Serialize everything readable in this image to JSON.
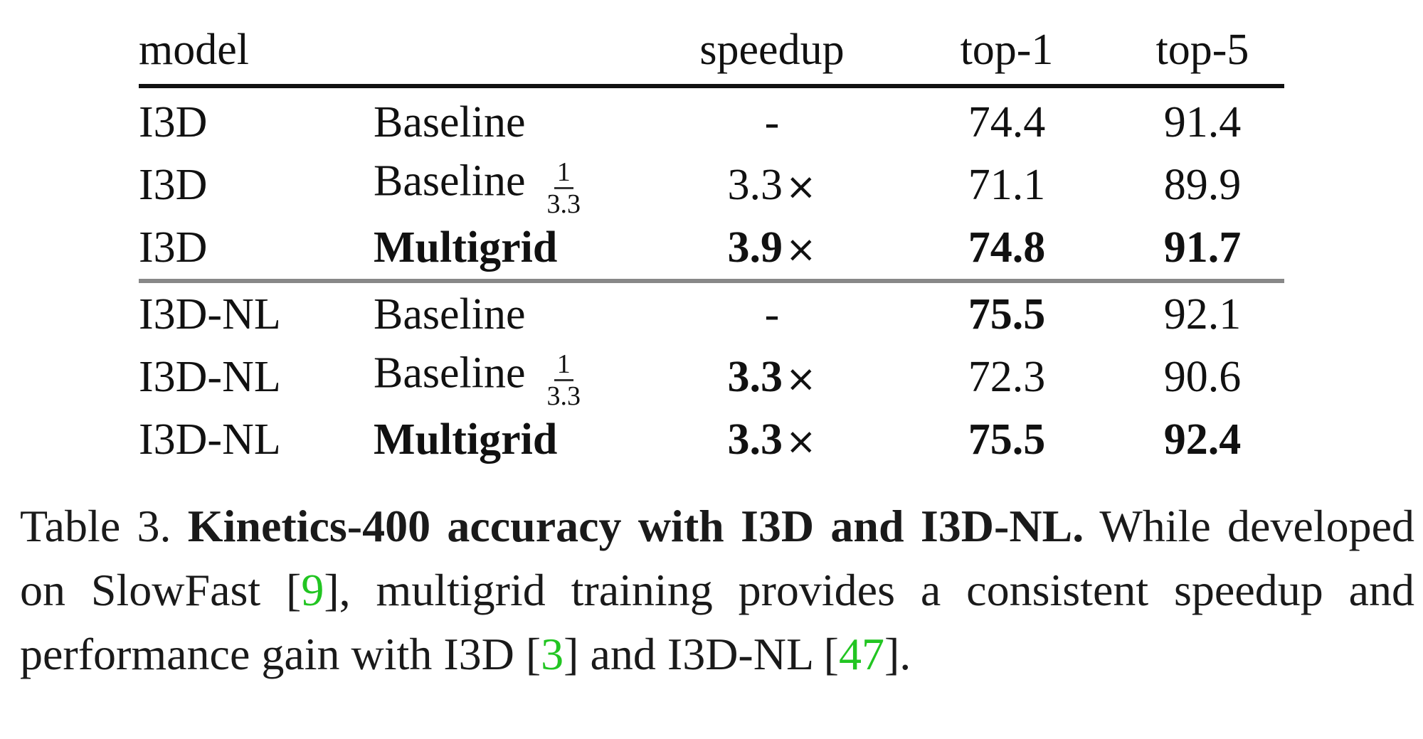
{
  "table": {
    "headers": {
      "model": "model",
      "method": "",
      "speedup": "speedup",
      "top1": "top-1",
      "top5": "top-5"
    },
    "rows": [
      {
        "model": "I3D",
        "method": "Baseline",
        "frac": null,
        "speedup": "-",
        "times": "",
        "top1": "74.4",
        "top5": "91.4"
      },
      {
        "model": "I3D",
        "method": "Baseline",
        "frac": {
          "num": "1",
          "den": "3.3"
        },
        "speedup": "3.3",
        "times": "×",
        "top1": "71.1",
        "top5": "89.9"
      },
      {
        "model": "I3D",
        "method": "Multigrid",
        "frac": null,
        "speedup": "3.9",
        "times": "×",
        "top1": "74.8",
        "top5": "91.7"
      },
      {
        "model": "I3D-NL",
        "method": "Baseline",
        "frac": null,
        "speedup": "-",
        "times": "",
        "top1": "75.5",
        "top5": "92.1"
      },
      {
        "model": "I3D-NL",
        "method": "Baseline",
        "frac": {
          "num": "1",
          "den": "3.3"
        },
        "speedup": "3.3",
        "times": "×",
        "top1": "72.3",
        "top5": "90.6"
      },
      {
        "model": "I3D-NL",
        "method": "Multigrid",
        "frac": null,
        "speedup": "3.3",
        "times": "×",
        "top1": "75.5",
        "top5": "92.4"
      }
    ]
  },
  "caption": {
    "label": "Table 3.",
    "title": "Kinetics-400 accuracy with I3D and I3D-NL.",
    "text_1": "While developed on SlowFast [",
    "ref_1": "9",
    "text_2": "], multigrid training provides a consistent speedup and performance gain with I3D [",
    "ref_2": "3",
    "text_3": "] and I3D-NL [",
    "ref_3": "47",
    "text_4": "]."
  }
}
